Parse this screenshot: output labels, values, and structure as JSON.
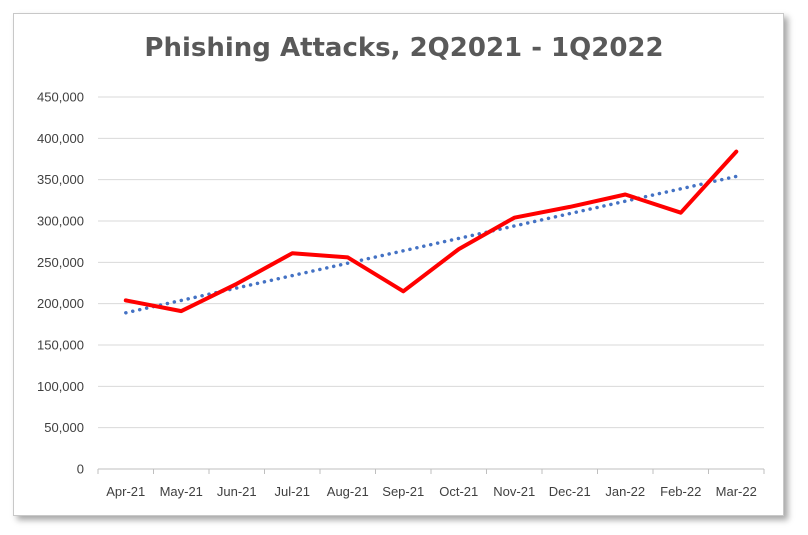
{
  "chart_data": {
    "type": "line",
    "title": "Phishing Attacks, 2Q2021 - 1Q2022",
    "xlabel": "",
    "ylabel": "",
    "categories": [
      "Apr-21",
      "May-21",
      "Jun-21",
      "Jul-21",
      "Aug-21",
      "Sep-21",
      "Oct-21",
      "Nov-21",
      "Dec-21",
      "Jan-22",
      "Feb-22",
      "Mar-22"
    ],
    "ylim": [
      0,
      450000
    ],
    "yticks": [
      0,
      50000,
      100000,
      150000,
      200000,
      250000,
      300000,
      350000,
      400000,
      450000
    ],
    "ytick_labels": [
      "0",
      "50,000",
      "100,000",
      "150,000",
      "200,000",
      "250,000",
      "300,000",
      "350,000",
      "400,000",
      "450,000"
    ],
    "grid": true,
    "legend": "none",
    "series": [
      {
        "values": [
          204000,
          191000,
          224000,
          261000,
          256000,
          215000,
          266000,
          304000,
          317000,
          332000,
          310000,
          384000
        ],
        "color": "#ff0000",
        "style": "solid"
      },
      {
        "values": [
          189000,
          204000,
          219000,
          234000,
          249000,
          264000,
          279000,
          294000,
          309000,
          324000,
          339000,
          354000
        ],
        "color": "#4472c4",
        "style": "dotted",
        "kind": "linear trendline"
      }
    ]
  }
}
